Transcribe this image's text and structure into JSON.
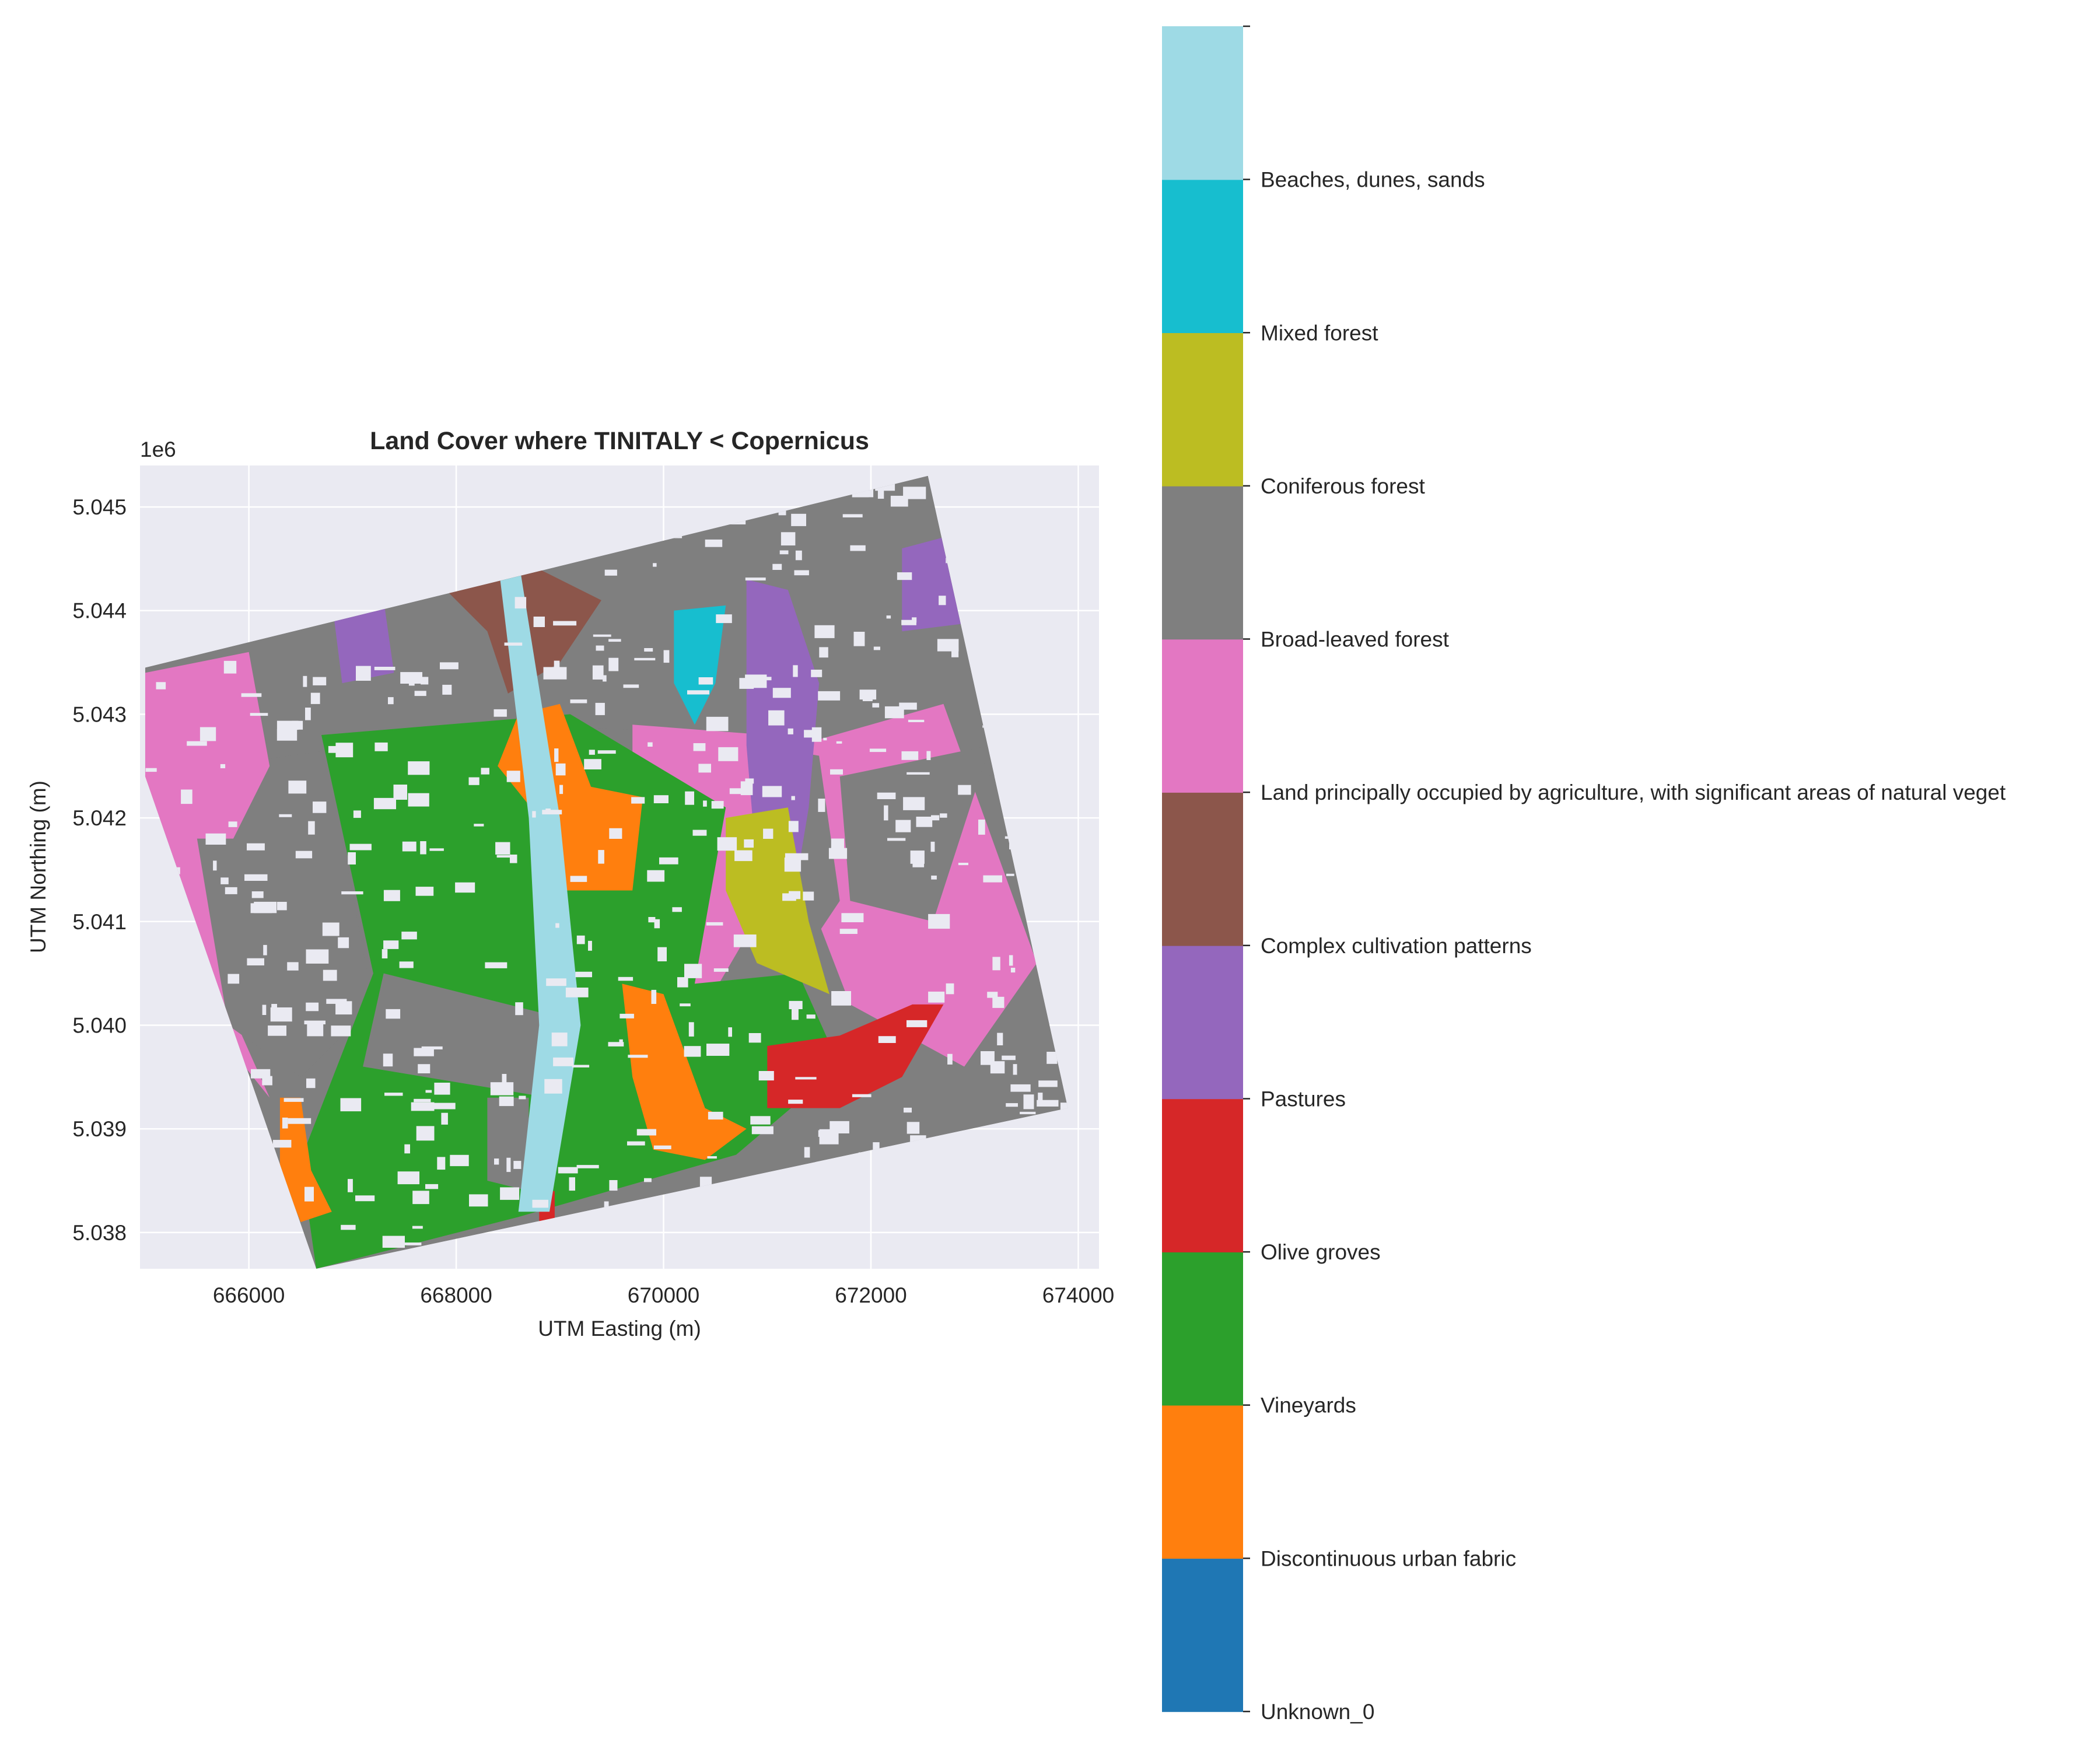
{
  "chart_data": {
    "type": "heatmap",
    "title": "Land Cover where TINITALY < Copernicus",
    "xlabel": "UTM Easting (m)",
    "ylabel": "UTM Northing (m)",
    "xlim": [
      664950,
      674200
    ],
    "ylim": [
      5037650,
      5045400
    ],
    "x_ticks": [
      666000,
      668000,
      670000,
      672000,
      674000
    ],
    "x_tick_labels": [
      "666000",
      "668000",
      "670000",
      "672000",
      "674000"
    ],
    "y_ticks": [
      5038000,
      5039000,
      5040000,
      5041000,
      5042000,
      5043000,
      5044000,
      5045000
    ],
    "y_tick_labels": [
      "5.038",
      "5.039",
      "5.040",
      "5.041",
      "5.042",
      "5.043",
      "5.044",
      "5.045"
    ],
    "y_offset_label": "1e6",
    "grid": true,
    "background_color": "#EAEAF2",
    "footprint_corners": [
      [
        665000,
        5043450
      ],
      [
        672550,
        5045300
      ],
      [
        673900,
        5039200
      ],
      [
        666650,
        5037650
      ],
      [
        665000,
        5042400
      ]
    ],
    "classes": [
      {
        "name": "Unknown_0",
        "color": "#1F77B4"
      },
      {
        "name": "Discontinuous urban fabric",
        "color": "#FF7F0E"
      },
      {
        "name": "Vineyards",
        "color": "#2CA02C"
      },
      {
        "name": "Olive groves",
        "color": "#D62728"
      },
      {
        "name": "Pastures",
        "color": "#9467BD"
      },
      {
        "name": "Complex cultivation patterns",
        "color": "#8C564B"
      },
      {
        "name": "Land principally occupied by agriculture, with significant areas of natural vegetation",
        "color": "#E377C2"
      },
      {
        "name": "Broad-leaved forest",
        "color": "#7F7F7F"
      },
      {
        "name": "Coniferous forest",
        "color": "#BCBD22"
      },
      {
        "name": "Mixed forest",
        "color": "#17BECF"
      },
      {
        "name": "Beaches, dunes, sands",
        "color": "#9EDAE5"
      }
    ],
    "colorbar_tick_labels": [
      "Unknown_0",
      "Discontinuous urban fabric",
      "Vineyards",
      "Olive groves",
      "Pastures",
      "Complex cultivation patterns",
      "Land principally occupied by agriculture, with significant areas of natural veget",
      "Broad-leaved forest",
      "Coniferous forest",
      "Mixed forest",
      "Beaches, dunes, sands"
    ],
    "regions": [
      {
        "class": "Broad-leaved forest",
        "polygon": [
          [
            665000,
            5043450
          ],
          [
            672550,
            5045300
          ],
          [
            673200,
            5042400
          ],
          [
            671000,
            5042800
          ],
          [
            668500,
            5042900
          ],
          [
            665000,
            5042400
          ]
        ]
      },
      {
        "class": "Land principally occupied by agriculture, with significant areas of natural vegetation",
        "polygon": [
          [
            665000,
            5043400
          ],
          [
            666000,
            5043600
          ],
          [
            666200,
            5042500
          ],
          [
            665600,
            5041300
          ],
          [
            665800,
            5040200
          ],
          [
            666200,
            5039300
          ],
          [
            665400,
            5040300
          ],
          [
            665000,
            5042400
          ]
        ]
      },
      {
        "class": "Broad-leaved forest",
        "polygon": [
          [
            665500,
            5041800
          ],
          [
            666900,
            5041800
          ],
          [
            667200,
            5040200
          ],
          [
            666500,
            5039500
          ],
          [
            665800,
            5040000
          ]
        ]
      },
      {
        "class": "Land principally occupied by agriculture, with significant areas of natural vegetation",
        "polygon": [
          [
            671300,
            5042700
          ],
          [
            672700,
            5043100
          ],
          [
            673600,
            5040600
          ],
          [
            672900,
            5039600
          ],
          [
            671800,
            5040200
          ],
          [
            671300,
            5041500
          ]
        ]
      },
      {
        "class": "Broad-leaved forest",
        "polygon": [
          [
            671700,
            5042400
          ],
          [
            673150,
            5042700
          ],
          [
            672600,
            5041000
          ],
          [
            671800,
            5041200
          ]
        ]
      },
      {
        "class": "Land principally occupied by agriculture, with significant areas of natural vegetation",
        "polygon": [
          [
            669700,
            5042900
          ],
          [
            671000,
            5042800
          ],
          [
            671000,
            5041200
          ],
          [
            670300,
            5040000
          ],
          [
            669700,
            5040600
          ]
        ]
      },
      {
        "class": "Broad-leaved forest",
        "polygon": [
          [
            670900,
            5042700
          ],
          [
            671500,
            5042600
          ],
          [
            671700,
            5041200
          ],
          [
            671300,
            5040600
          ],
          [
            670900,
            5041000
          ]
        ]
      },
      {
        "class": "Vineyards",
        "polygon": [
          [
            666700,
            5042800
          ],
          [
            669100,
            5043000
          ],
          [
            670600,
            5042100
          ],
          [
            670300,
            5040400
          ],
          [
            671300,
            5040500
          ],
          [
            671700,
            5039600
          ],
          [
            670700,
            5038750
          ],
          [
            668600,
            5038150
          ],
          [
            666650,
            5037650
          ],
          [
            666500,
            5038700
          ],
          [
            667200,
            5040500
          ]
        ]
      },
      {
        "class": "Broad-leaved forest",
        "polygon": [
          [
            667300,
            5040500
          ],
          [
            668900,
            5040100
          ],
          [
            668900,
            5039300
          ],
          [
            667100,
            5039600
          ]
        ]
      },
      {
        "class": "Broad-leaved forest",
        "polygon": [
          [
            668300,
            5039300
          ],
          [
            668700,
            5039300
          ],
          [
            668700,
            5038400
          ],
          [
            668300,
            5038500
          ]
        ]
      },
      {
        "class": "Discontinuous urban fabric",
        "polygon": [
          [
            668600,
            5043000
          ],
          [
            669000,
            5043100
          ],
          [
            669300,
            5042300
          ],
          [
            669800,
            5042200
          ],
          [
            669700,
            5041300
          ],
          [
            669000,
            5041300
          ],
          [
            668800,
            5042000
          ],
          [
            668400,
            5042500
          ]
        ]
      },
      {
        "class": "Discontinuous urban fabric",
        "polygon": [
          [
            669600,
            5040400
          ],
          [
            670000,
            5040300
          ],
          [
            670400,
            5039200
          ],
          [
            670800,
            5039000
          ],
          [
            670400,
            5038700
          ],
          [
            669900,
            5038800
          ],
          [
            669700,
            5039500
          ]
        ]
      },
      {
        "class": "Discontinuous urban fabric",
        "polygon": [
          [
            666300,
            5039300
          ],
          [
            666500,
            5039300
          ],
          [
            666600,
            5038600
          ],
          [
            666800,
            5038200
          ],
          [
            666500,
            5038100
          ],
          [
            666300,
            5038600
          ]
        ]
      },
      {
        "class": "Complex cultivation patterns",
        "polygon": [
          [
            667800,
            5044300
          ],
          [
            668600,
            5044500
          ],
          [
            669400,
            5044100
          ],
          [
            669000,
            5043500
          ],
          [
            668500,
            5043200
          ],
          [
            668300,
            5043800
          ]
        ]
      },
      {
        "class": "Pastures",
        "polygon": [
          [
            670800,
            5044300
          ],
          [
            671200,
            5044200
          ],
          [
            671500,
            5043300
          ],
          [
            671400,
            5042100
          ],
          [
            671200,
            5040900
          ],
          [
            670900,
            5041500
          ],
          [
            670800,
            5042700
          ]
        ]
      },
      {
        "class": "Pastures",
        "polygon": [
          [
            666800,
            5044100
          ],
          [
            667300,
            5044100
          ],
          [
            667400,
            5043400
          ],
          [
            666900,
            5043300
          ]
        ]
      },
      {
        "class": "Pastures",
        "polygon": [
          [
            672300,
            5044600
          ],
          [
            673050,
            5044800
          ],
          [
            673100,
            5043900
          ],
          [
            672300,
            5043800
          ]
        ]
      },
      {
        "class": "Coniferous forest",
        "polygon": [
          [
            670600,
            5042000
          ],
          [
            671200,
            5042100
          ],
          [
            671400,
            5041000
          ],
          [
            671600,
            5040300
          ],
          [
            670900,
            5040600
          ],
          [
            670600,
            5041300
          ]
        ]
      },
      {
        "class": "Mixed forest",
        "polygon": [
          [
            670100,
            5044000
          ],
          [
            670600,
            5044050
          ],
          [
            670500,
            5043300
          ],
          [
            670300,
            5042900
          ],
          [
            670100,
            5043300
          ]
        ]
      },
      {
        "class": "Olive groves",
        "polygon": [
          [
            671000,
            5039800
          ],
          [
            671700,
            5039900
          ],
          [
            672400,
            5040200
          ],
          [
            672700,
            5040200
          ],
          [
            672300,
            5039500
          ],
          [
            671700,
            5039200
          ],
          [
            671000,
            5039200
          ]
        ]
      },
      {
        "class": "Olive groves",
        "polygon": [
          [
            668800,
            5038400
          ],
          [
            668950,
            5038400
          ],
          [
            668950,
            5038050
          ],
          [
            668800,
            5038050
          ]
        ]
      },
      {
        "class": "Beaches, dunes, sands",
        "polygon": [
          [
            668400,
            5044500
          ],
          [
            668600,
            5044500
          ],
          [
            669000,
            5042000
          ],
          [
            669200,
            5040000
          ],
          [
            668900,
            5038200
          ],
          [
            668600,
            5038200
          ],
          [
            668800,
            5040000
          ],
          [
            668700,
            5042000
          ]
        ]
      }
    ]
  }
}
